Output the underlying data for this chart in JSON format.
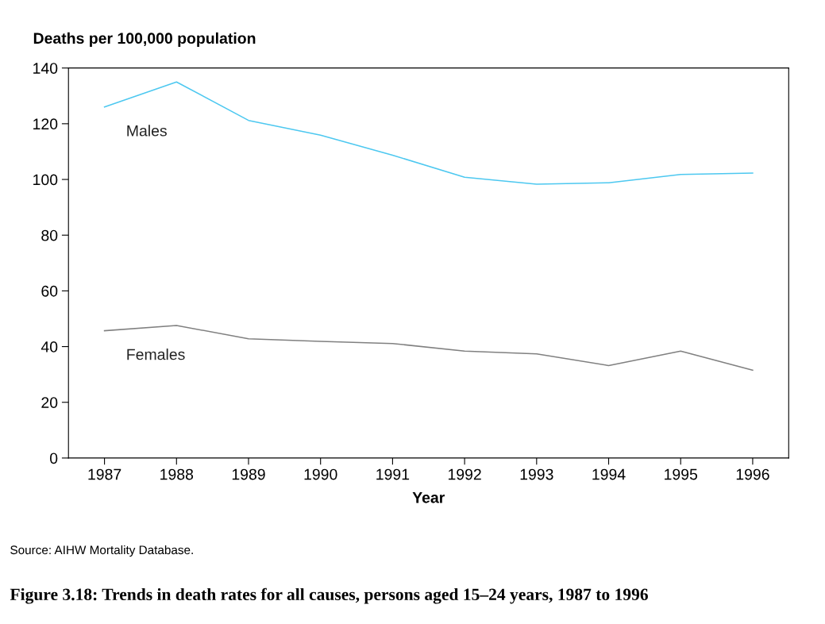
{
  "chart_data": {
    "type": "line",
    "title": "Figure 3.18: Trends in death rates for all causes, persons aged 15–24 years, 1987 to 1996",
    "ylabel": "Deaths per 100,000 population",
    "xlabel": "Year",
    "x": [
      1987,
      1988,
      1989,
      1990,
      1991,
      1992,
      1993,
      1994,
      1995,
      1996
    ],
    "series": [
      {
        "name": "Males",
        "color": "#4dc8f0",
        "values": [
          126,
          135,
          121.2,
          115.9,
          108.7,
          100.8,
          98.3,
          98.8,
          101.8,
          102.3
        ]
      },
      {
        "name": "Females",
        "color": "#808080",
        "values": [
          45.7,
          47.6,
          42.8,
          41.9,
          41.1,
          38.4,
          37.4,
          33.2,
          38.4,
          31.5
        ]
      }
    ],
    "xlim": [
      1986.5,
      1996.5
    ],
    "xticks": [
      1987,
      1988,
      1989,
      1990,
      1991,
      1992,
      1993,
      1994,
      1995,
      1996
    ],
    "ylim": [
      0,
      140
    ],
    "yticks": [
      0,
      20,
      40,
      60,
      80,
      100,
      120,
      140
    ],
    "grid": false,
    "legend": false,
    "marker": "none",
    "line_style": "solid",
    "annotations": [
      "Source: AIHW Mortality Database."
    ]
  }
}
